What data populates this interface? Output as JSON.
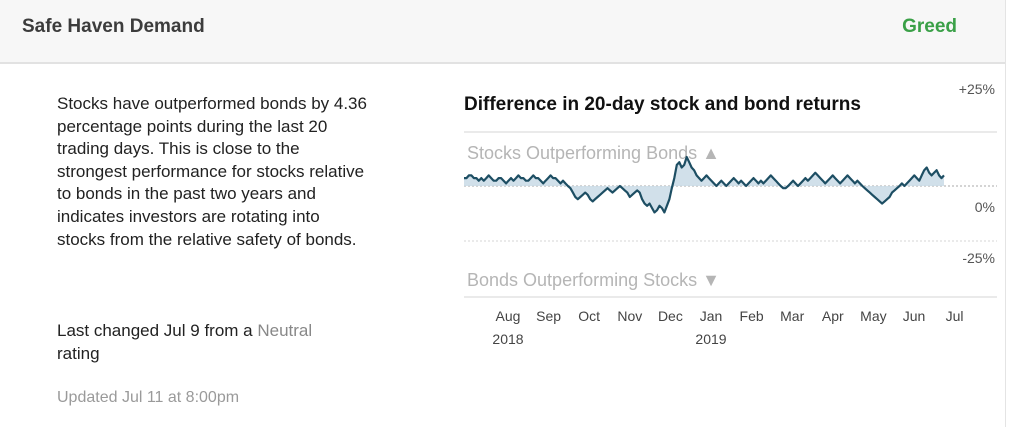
{
  "card": {
    "title": "Safe Haven Demand",
    "rating": "Greed",
    "rating_color": "#3aa047",
    "description": "Stocks have outperformed bonds by 4.36 percentage points during the last 20 trading days. This is close to the strongest performance for stocks relative to bonds in the past two years and indicates investors are rotating into stocks from the relative safety of bonds.",
    "last_changed_prefix": "Last changed Jul 9 from a",
    "last_changed_rating": "Neutral",
    "last_changed_suffix": "rating",
    "updated": "Updated Jul 11 at 8:00pm"
  },
  "chart_data": {
    "type": "area",
    "title": "Difference in 20-day stock and bond returns",
    "upper_label": "Stocks Outperforming Bonds",
    "lower_label": "Bonds Outperforming Stocks",
    "arrow_up": "▲",
    "arrow_down": "▼",
    "ylim": [
      -25,
      25
    ],
    "y_ticks": [
      {
        "value": 25,
        "label": "+25%"
      },
      {
        "value": 0,
        "label": "0%"
      },
      {
        "value": -25,
        "label": "-25%"
      }
    ],
    "x_ticks": [
      "Aug",
      "Sep",
      "Oct",
      "Nov",
      "Dec",
      "Jan",
      "Feb",
      "Mar",
      "Apr",
      "May",
      "Jun",
      "Jul"
    ],
    "x_year_labels": [
      {
        "month": "Aug",
        "year": "2018"
      },
      {
        "month": "Jan",
        "year": "2019"
      }
    ],
    "series_color": "#1d4e63",
    "fill_color": "#c9dbe6",
    "values": [
      3,
      3,
      4,
      4,
      3,
      3,
      2,
      3,
      2,
      3,
      4,
      3,
      2,
      2,
      3,
      3,
      2,
      1,
      2,
      3,
      2,
      3,
      4,
      3,
      3,
      2,
      2,
      3,
      4,
      3,
      3,
      2,
      1,
      2,
      3,
      4,
      3,
      3,
      2,
      1,
      2,
      1,
      0,
      -1,
      -3,
      -5,
      -6,
      -5,
      -4,
      -3,
      -4,
      -6,
      -7,
      -6,
      -5,
      -4,
      -3,
      -2,
      -1,
      -2,
      -3,
      -2,
      -1,
      0,
      -1,
      -2,
      -3,
      -5,
      -4,
      -3,
      -2,
      -3,
      -6,
      -8,
      -9,
      -8,
      -10,
      -12,
      -11,
      -9,
      -10,
      -12,
      -9,
      -6,
      -1,
      3,
      8,
      9,
      7,
      8,
      11,
      9,
      7,
      6,
      4,
      3,
      2,
      3,
      4,
      3,
      2,
      1,
      0,
      1,
      2,
      1,
      0,
      1,
      2,
      3,
      2,
      1,
      2,
      1,
      0,
      1,
      2,
      3,
      2,
      1,
      2,
      1,
      2,
      3,
      4,
      3,
      2,
      1,
      0,
      -1,
      -1,
      0,
      1,
      2,
      1,
      0,
      1,
      2,
      3,
      2,
      3,
      4,
      5,
      4,
      3,
      2,
      1,
      2,
      3,
      4,
      3,
      2,
      1,
      2,
      3,
      4,
      3,
      2,
      1,
      2,
      1,
      0,
      -1,
      -2,
      -3,
      -4,
      -5,
      -6,
      -7,
      -8,
      -7,
      -6,
      -5,
      -3,
      -2,
      -1,
      0,
      1,
      0,
      1,
      2,
      3,
      4,
      3,
      2,
      4,
      6,
      7,
      5,
      4,
      5,
      6,
      4,
      3,
      4
    ]
  }
}
